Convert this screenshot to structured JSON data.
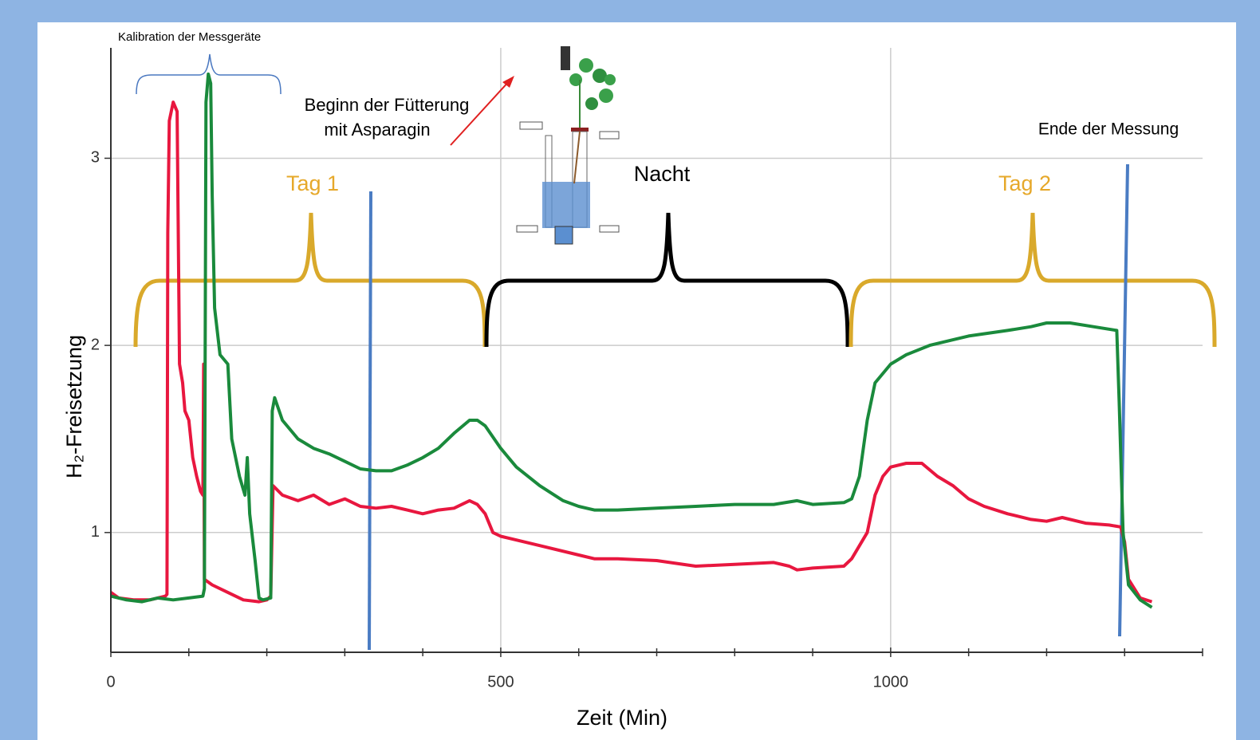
{
  "chart_data": {
    "type": "line",
    "x_label": "Zeit (Min)",
    "y_label": "H₂-Freisetzung",
    "annotations": [
      "Kalibration der Messgeräte",
      "Beginn der Fütterung",
      "mit Asparagin",
      "Ende der Messung",
      "Tag 1",
      "Nacht",
      "Tag 2"
    ],
    "xlim": [
      0,
      1400
    ],
    "ylim": [
      0.36,
      3.59
    ],
    "xticks": [
      0,
      500,
      1000
    ],
    "xminorticks": [
      100,
      200,
      300,
      400,
      600,
      700,
      800,
      900,
      1100,
      1200,
      1300,
      1400
    ],
    "yticks": [
      1,
      2,
      3
    ],
    "grid": true,
    "series": [
      {
        "color": "#e8173f",
        "x": [
          0,
          10,
          30,
          50,
          70,
          72,
          73,
          75,
          80,
          85,
          88,
          92,
          95,
          100,
          105,
          110,
          115,
          118,
          119,
          120,
          130,
          150,
          170,
          190,
          200,
          205,
          208,
          220,
          240,
          260,
          280,
          300,
          320,
          340,
          360,
          380,
          400,
          420,
          440,
          460,
          470,
          480,
          490,
          500,
          550,
          600,
          620,
          650,
          700,
          750,
          800,
          850,
          870,
          880,
          900,
          940,
          950,
          970,
          980,
          990,
          1000,
          1020,
          1040,
          1060,
          1080,
          1100,
          1120,
          1150,
          1180,
          1200,
          1220,
          1250,
          1280,
          1295,
          1300,
          1305,
          1320,
          1335
        ],
        "values": [
          0.68,
          0.65,
          0.64,
          0.64,
          0.66,
          0.67,
          2.6,
          3.2,
          3.3,
          3.25,
          1.9,
          1.8,
          1.65,
          1.6,
          1.4,
          1.3,
          1.22,
          1.2,
          1.9,
          0.75,
          0.72,
          0.68,
          0.64,
          0.63,
          0.64,
          0.66,
          1.25,
          1.2,
          1.17,
          1.2,
          1.15,
          1.18,
          1.14,
          1.13,
          1.14,
          1.12,
          1.1,
          1.12,
          1.13,
          1.17,
          1.15,
          1.1,
          1.0,
          0.98,
          0.93,
          0.88,
          0.86,
          0.86,
          0.85,
          0.82,
          0.83,
          0.84,
          0.82,
          0.8,
          0.81,
          0.82,
          0.86,
          1.0,
          1.2,
          1.3,
          1.35,
          1.37,
          1.37,
          1.3,
          1.25,
          1.18,
          1.14,
          1.1,
          1.07,
          1.06,
          1.08,
          1.05,
          1.04,
          1.03,
          0.95,
          0.75,
          0.65,
          0.63
        ]
      },
      {
        "color": "#1a8a3c",
        "x": [
          0,
          20,
          40,
          60,
          80,
          100,
          118,
          120,
          122,
          125,
          128,
          130,
          133,
          140,
          150,
          155,
          165,
          172,
          175,
          178,
          185,
          190,
          195,
          205,
          207,
          210,
          220,
          240,
          260,
          280,
          300,
          320,
          340,
          360,
          380,
          400,
          420,
          440,
          460,
          470,
          480,
          500,
          520,
          550,
          580,
          600,
          620,
          650,
          700,
          750,
          800,
          850,
          880,
          900,
          940,
          950,
          960,
          970,
          980,
          1000,
          1020,
          1050,
          1080,
          1100,
          1150,
          1180,
          1200,
          1230,
          1260,
          1290,
          1293,
          1298,
          1305,
          1320,
          1335
        ],
        "values": [
          0.66,
          0.64,
          0.63,
          0.65,
          0.64,
          0.65,
          0.66,
          0.7,
          3.3,
          3.45,
          3.4,
          2.8,
          2.2,
          1.95,
          1.9,
          1.5,
          1.3,
          1.2,
          1.4,
          1.1,
          0.85,
          0.65,
          0.64,
          0.65,
          1.65,
          1.72,
          1.6,
          1.5,
          1.45,
          1.42,
          1.38,
          1.34,
          1.33,
          1.33,
          1.36,
          1.4,
          1.45,
          1.53,
          1.6,
          1.6,
          1.57,
          1.45,
          1.35,
          1.25,
          1.17,
          1.14,
          1.12,
          1.12,
          1.13,
          1.14,
          1.15,
          1.15,
          1.17,
          1.15,
          1.16,
          1.18,
          1.3,
          1.6,
          1.8,
          1.9,
          1.95,
          2.0,
          2.03,
          2.05,
          2.08,
          2.1,
          2.12,
          2.12,
          2.1,
          2.08,
          1.7,
          1.0,
          0.72,
          0.64,
          0.6
        ]
      }
    ]
  }
}
